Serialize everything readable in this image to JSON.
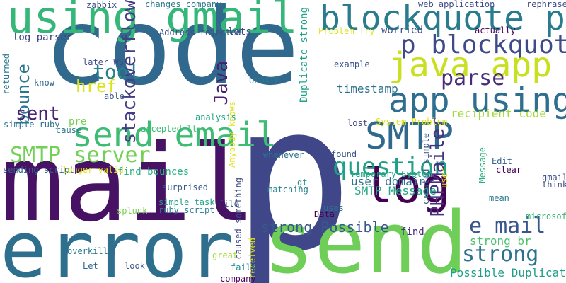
{
  "title": "",
  "words": [
    {
      "text": "code",
      "color": "#31688e",
      "vertical": false
    },
    {
      "text": "p",
      "color": "#3f4788",
      "vertical": false
    },
    {
      "text": "mail",
      "color": "#471164",
      "vertical": false
    },
    {
      "text": "error",
      "color": "#2e6f8e",
      "vertical": false
    },
    {
      "text": "send",
      "color": "#6ece58",
      "vertical": false
    },
    {
      "text": "using gmail",
      "color": "#35b779",
      "vertical": false
    },
    {
      "text": "blockquote p",
      "color": "#287c8e",
      "vertical": false
    },
    {
      "text": "p blockquote",
      "color": "#3e4a89",
      "vertical": false
    },
    {
      "text": "java app",
      "color": "#c8e020",
      "vertical": false
    },
    {
      "text": "app using",
      "color": "#2e6e8e",
      "vertical": false
    },
    {
      "text": "send email",
      "color": "#3dbc74",
      "vertical": false
    },
    {
      "text": "SMTP",
      "color": "#31688e",
      "vertical": false
    },
    {
      "text": "log",
      "color": "#440154",
      "vertical": false
    },
    {
      "text": "SMTP server",
      "color": "#73d056",
      "vertical": false
    },
    {
      "text": "question",
      "color": "#1fa187",
      "vertical": false
    },
    {
      "text": "e mail",
      "color": "#39568c",
      "vertical": false
    },
    {
      "text": "strong",
      "color": "#2c728e",
      "vertical": false
    },
    {
      "text": "parse",
      "color": "#472c7a",
      "vertical": false
    },
    {
      "text": "tool",
      "color": "#26828e",
      "vertical": false
    },
    {
      "text": "href",
      "color": "#dde318",
      "vertical": false
    },
    {
      "text": "bounce",
      "color": "#2a788e",
      "vertical": true
    },
    {
      "text": "sent",
      "color": "#482475",
      "vertical": false
    },
    {
      "text": "stackoverflow",
      "color": "#433e85",
      "vertical": true
    },
    {
      "text": "Java",
      "color": "#481f70",
      "vertical": true
    },
    {
      "text": "PHPMailer",
      "color": "#46337f",
      "vertical": true
    },
    {
      "text": "strong Possible",
      "color": "#38588c",
      "vertical": false
    },
    {
      "text": "Duplicate strong",
      "color": "#1fa188",
      "vertical": true
    },
    {
      "text": "timestamp",
      "color": "#2d708e",
      "vertical": false
    },
    {
      "text": "recipient code",
      "color": "#a0da39",
      "vertical": false
    },
    {
      "text": "Possible Duplicate",
      "color": "#1f9e89",
      "vertical": false
    },
    {
      "text": "strong br",
      "color": "#4ac16d",
      "vertical": false
    },
    {
      "text": "user domain",
      "color": "#2d718e",
      "vertical": false
    },
    {
      "text": "SMTP Message",
      "color": "#22a785",
      "vertical": false
    },
    {
      "text": "worried",
      "color": "#3b528b",
      "vertical": false
    },
    {
      "text": "lots",
      "color": "#3f4889",
      "vertical": false
    },
    {
      "text": "log parser",
      "color": "#414487",
      "vertical": false
    },
    {
      "text": "pre",
      "color": "#75d054",
      "vertical": false
    },
    {
      "text": "find bounces",
      "color": "#2ab07f",
      "vertical": false
    },
    {
      "text": "sending script",
      "color": "#33638d",
      "vertical": false
    },
    {
      "text": "longer valid",
      "color": "#dde318",
      "vertical": false
    },
    {
      "text": "surprised",
      "color": "#38588c",
      "vertical": false
    },
    {
      "text": "simple task",
      "color": "#1fa187",
      "vertical": false
    },
    {
      "text": "ruby script",
      "color": "#297b8e",
      "vertical": false
    },
    {
      "text": "splunk",
      "color": "#7ad151",
      "vertical": false
    },
    {
      "text": "overkill",
      "color": "#2a788e",
      "vertical": false
    },
    {
      "text": "Let",
      "color": "#31688e",
      "vertical": false
    },
    {
      "text": "look",
      "color": "#3b528b",
      "vertical": false
    },
    {
      "text": "great",
      "color": "#a5db36",
      "vertical": false
    },
    {
      "text": "fails",
      "color": "#238a8d",
      "vertical": false
    },
    {
      "text": "company",
      "color": "#440154",
      "vertical": false
    },
    {
      "text": "received",
      "color": "#dde318",
      "vertical": true
    },
    {
      "text": "caused something",
      "color": "#3e4a89",
      "vertical": true
    },
    {
      "text": "Anybody knows",
      "color": "#dde318",
      "vertical": true
    },
    {
      "text": "file",
      "color": "#3b528b",
      "vertical": false
    },
    {
      "text": "matching",
      "color": "#26828e",
      "vertical": false
    },
    {
      "text": "gt",
      "color": "#21918c",
      "vertical": false
    },
    {
      "text": "Data",
      "color": "#440154",
      "vertical": false
    },
    {
      "text": "uses",
      "color": "#2d708e",
      "vertical": false
    },
    {
      "text": "find",
      "color": "#472c7a",
      "vertical": false
    },
    {
      "text": "Temporary System",
      "color": "#22a884",
      "vertical": false
    },
    {
      "text": "found",
      "color": "#3b528b",
      "vertical": false
    },
    {
      "text": "whenever",
      "color": "#2c728e",
      "vertical": false
    },
    {
      "text": "lost",
      "color": "#3f4788",
      "vertical": false
    },
    {
      "text": "System Problem",
      "color": "#dde318",
      "vertical": false
    },
    {
      "text": "created simple",
      "color": "#39568c",
      "vertical": true
    },
    {
      "text": "user",
      "color": "#dde318",
      "vertical": true
    },
    {
      "text": "Message",
      "color": "#2ab07f",
      "vertical": true
    },
    {
      "text": "Edit",
      "color": "#33638d",
      "vertical": false
    },
    {
      "text": "clear",
      "color": "#440154",
      "vertical": false
    },
    {
      "text": "mean",
      "color": "#2a788e",
      "vertical": false
    },
    {
      "text": "gmail",
      "color": "#3b528b",
      "vertical": false
    },
    {
      "text": "think",
      "color": "#3e4a89",
      "vertical": false
    },
    {
      "text": "microsoft",
      "color": "#35b779",
      "vertical": false
    },
    {
      "text": "analysis",
      "color": "#22a884",
      "vertical": false
    },
    {
      "text": "accepted lt",
      "color": "#3dbc74",
      "vertical": false
    },
    {
      "text": "cause",
      "color": "#2a788e",
      "vertical": false
    },
    {
      "text": "simple ruby",
      "color": "#2c728e",
      "vertical": false
    },
    {
      "text": "able",
      "color": "#3b528b",
      "vertical": false
    },
    {
      "text": "know",
      "color": "#31688e",
      "vertical": false
    },
    {
      "text": "returned",
      "color": "#2a788e",
      "vertical": true
    },
    {
      "text": "later WS",
      "color": "#3e4a89",
      "vertical": false
    },
    {
      "text": "zabbix",
      "color": "#3b528b",
      "vertical": false
    },
    {
      "text": "Address rejected",
      "color": "#3e4a89",
      "vertical": false
    },
    {
      "text": "changes company",
      "color": "#2a788e",
      "vertical": false
    },
    {
      "text": "Problem Try",
      "color": "#dde318",
      "vertical": false
    },
    {
      "text": "UPDATE",
      "color": "#2a788e",
      "vertical": false
    },
    {
      "text": "example",
      "color": "#3b528b",
      "vertical": false
    },
    {
      "text": "web application",
      "color": "#3e4a89",
      "vertical": false
    },
    {
      "text": "rephrase",
      "color": "#3e4a89",
      "vertical": false
    },
    {
      "text": "actually",
      "color": "#440154",
      "vertical": false
    }
  ]
}
